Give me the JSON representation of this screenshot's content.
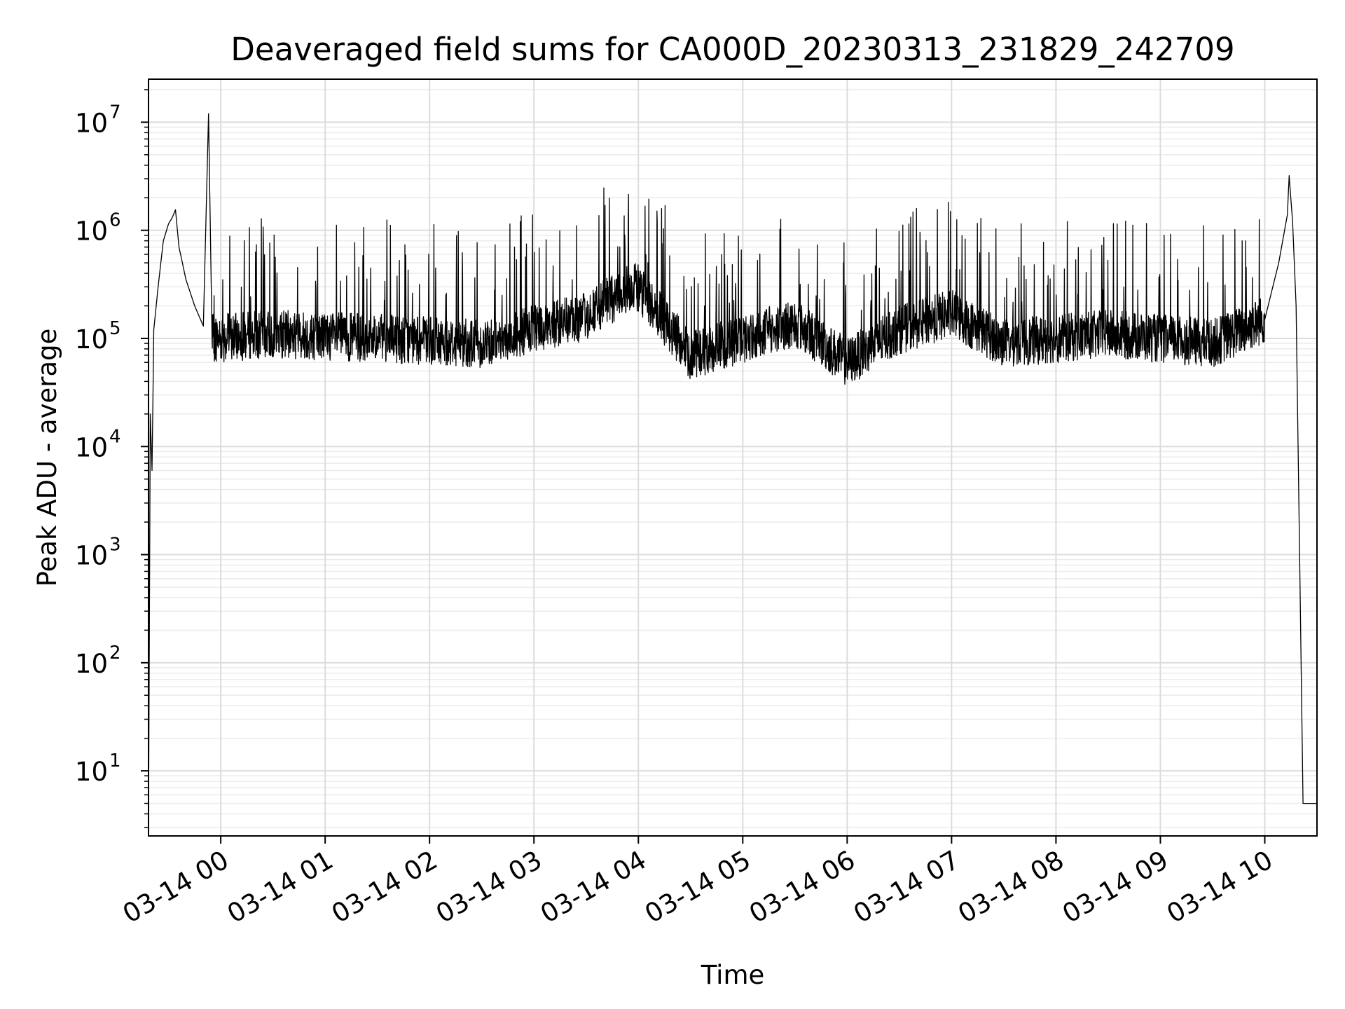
{
  "chart_data": {
    "type": "line",
    "title": "Deaveraged field sums for CA000D_20230313_231829_242709",
    "xlabel": "Time",
    "ylabel": "Peak ADU - average",
    "yscale": "log",
    "ylim": [
      2.5,
      25000000
    ],
    "xlim": [
      "2023-03-13 23:18:29",
      "2023-03-14 10:30:00"
    ],
    "grid": true,
    "x_tick_labels": [
      "03-14 00",
      "03-14 01",
      "03-14 02",
      "03-14 03",
      "03-14 04",
      "03-14 05",
      "03-14 06",
      "03-14 07",
      "03-14 08",
      "03-14 09",
      "03-14 10"
    ],
    "x_ticks": [
      "2023-03-14 00:00",
      "2023-03-14 01:00",
      "2023-03-14 02:00",
      "2023-03-14 03:00",
      "2023-03-14 04:00",
      "2023-03-14 05:00",
      "2023-03-14 06:00",
      "2023-03-14 07:00",
      "2023-03-14 08:00",
      "2023-03-14 09:00",
      "2023-03-14 10:00"
    ],
    "y_tick_labels": [
      {
        "base": "10",
        "exp": "1",
        "value": 10
      },
      {
        "base": "10",
        "exp": "2",
        "value": 100
      },
      {
        "base": "10",
        "exp": "3",
        "value": 1000
      },
      {
        "base": "10",
        "exp": "4",
        "value": 10000
      },
      {
        "base": "10",
        "exp": "5",
        "value": 100000
      },
      {
        "base": "10",
        "exp": "6",
        "value": 1000000
      },
      {
        "base": "10",
        "exp": "7",
        "value": 10000000
      }
    ],
    "series": [
      {
        "color": "#000000",
        "points": [
          [
            "2023-03-13 23:18:30",
            3
          ],
          [
            "2023-03-13 23:19:30",
            20000
          ],
          [
            "2023-03-13 23:20:30",
            6000
          ],
          [
            "2023-03-13 23:21:30",
            120000
          ],
          [
            "2023-03-13 23:24:00",
            300000
          ],
          [
            "2023-03-13 23:27:00",
            800000
          ],
          [
            "2023-03-13 23:30:00",
            1150000
          ],
          [
            "2023-03-13 23:32:00",
            1300000
          ],
          [
            "2023-03-13 23:34:00",
            1550000
          ],
          [
            "2023-03-13 23:36:00",
            700000
          ],
          [
            "2023-03-13 23:40:00",
            350000
          ],
          [
            "2023-03-13 23:45:00",
            200000
          ],
          [
            "2023-03-13 23:50:00",
            130000
          ],
          [
            "2023-03-13 23:53:00",
            12000000
          ],
          [
            "2023-03-13 23:55:00",
            100000
          ],
          [
            "2023-03-14 00:30:00",
            110000
          ],
          [
            "2023-03-14 01:30:00",
            100000
          ],
          [
            "2023-03-14 02:30:00",
            90000
          ],
          [
            "2023-03-14 03:30:00",
            160000
          ],
          [
            "2023-03-14 03:58:00",
            320000
          ],
          [
            "2023-03-14 04:30:00",
            70000
          ],
          [
            "2023-03-14 05:30:00",
            140000
          ],
          [
            "2023-03-14 06:00:00",
            60000
          ],
          [
            "2023-03-14 06:30:00",
            120000
          ],
          [
            "2023-03-14 07:00:00",
            170000
          ],
          [
            "2023-03-14 07:30:00",
            90000
          ],
          [
            "2023-03-14 08:30:00",
            110000
          ],
          [
            "2023-03-14 09:30:00",
            90000
          ],
          [
            "2023-03-14 10:00:00",
            150000
          ],
          [
            "2023-03-14 10:08:00",
            500000
          ],
          [
            "2023-03-14 10:13:00",
            1400000
          ],
          [
            "2023-03-14 10:14:00",
            3200000
          ],
          [
            "2023-03-14 10:16:00",
            1200000
          ],
          [
            "2023-03-14 10:18:00",
            200000
          ],
          [
            "2023-03-14 10:22:00",
            5
          ],
          [
            "2023-03-14 10:30:00",
            5
          ]
        ]
      }
    ]
  }
}
